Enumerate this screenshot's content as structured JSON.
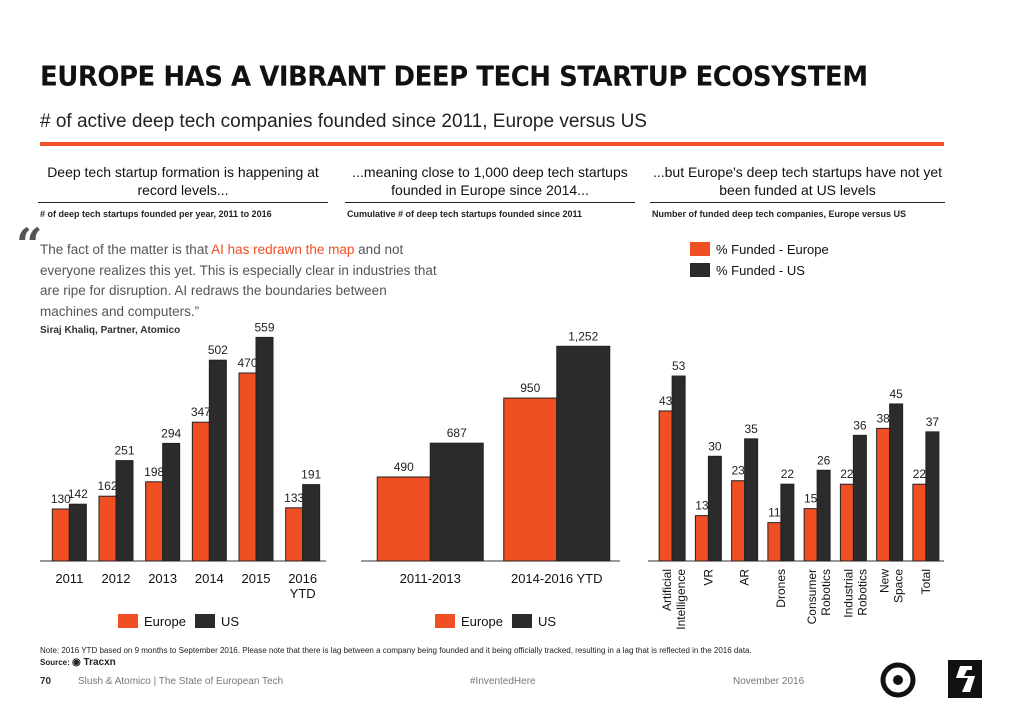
{
  "title": "EUROPE HAS A VIBRANT DEEP TECH STARTUP ECOSYSTEM",
  "subtitle": "# of active deep tech companies founded since 2011, Europe versus US",
  "columns": [
    {
      "heading": "Deep tech startup formation is happening at record levels...",
      "subheading": "# of deep tech startups founded per year, 2011 to 2016"
    },
    {
      "heading": "...meaning close to 1,000 deep tech startups founded in Europe since 2014...",
      "subheading": "Cumulative # of deep tech startups founded since 2011"
    },
    {
      "heading": "...but Europe's deep tech startups have not yet been funded at US levels",
      "subheading": "Number of funded deep tech companies, Europe versus US"
    }
  ],
  "quote": {
    "mark": "“",
    "text_before": "The fact of the matter is that ",
    "highlight": "AI has redrawn the map",
    "text_after": " and not everyone realizes this yet. This is especially clear in industries that are ripe for disruption. AI redraws the boundaries between machines and computers.”",
    "attribution": "Siraj Khaliq, Partner, Atomico"
  },
  "colors": {
    "europe": "#f04e23",
    "us": "#2b2b2b",
    "accent": "#f04e23"
  },
  "legends": {
    "europe": "Europe",
    "us": "US",
    "pct_europe": "% Funded - Europe",
    "pct_us": "% Funded - US"
  },
  "chart_data": [
    {
      "type": "bar",
      "categories": [
        "2011",
        "2012",
        "2013",
        "2014",
        "2015",
        "2016 YTD"
      ],
      "series": [
        {
          "name": "Europe",
          "values": [
            130,
            162,
            198,
            347,
            470,
            133
          ]
        },
        {
          "name": "US",
          "values": [
            142,
            251,
            294,
            502,
            559,
            191
          ]
        }
      ],
      "ylim": [
        0,
        600
      ]
    },
    {
      "type": "bar",
      "categories": [
        "2011-2013",
        "2014-2016 YTD"
      ],
      "series": [
        {
          "name": "Europe",
          "values": [
            490,
            950
          ]
        },
        {
          "name": "US",
          "values": [
            687,
            1252
          ]
        }
      ],
      "value_labels": [
        [
          "490",
          "950"
        ],
        [
          "687",
          "1,252"
        ]
      ],
      "ylim": [
        0,
        1300
      ]
    },
    {
      "type": "bar",
      "categories": [
        "Artificial Intelligence",
        "VR",
        "AR",
        "Drones",
        "Consumer Robotics",
        "Industrial Robotics",
        "New Space",
        "Total"
      ],
      "series": [
        {
          "name": "% Funded - Europe",
          "values": [
            43,
            13,
            23,
            11,
            15,
            22,
            38,
            22
          ]
        },
        {
          "name": "% Funded - US",
          "values": [
            53,
            30,
            35,
            22,
            26,
            36,
            45,
            37
          ]
        }
      ],
      "ylim": [
        0,
        60
      ]
    }
  ],
  "footer": {
    "note": "Note: 2016 YTD based on 9 months to September 2016. Please note that there is lag between a company being founded and it being officially tracked, resulting in a lag that is reflected in the 2016 data.",
    "source_label": "Source:",
    "source_name": "Tracxn",
    "page": "70",
    "publication": "Slush & Atomico  |  The State of European Tech",
    "hashtag": "#InventedHere",
    "date": "November 2016"
  }
}
